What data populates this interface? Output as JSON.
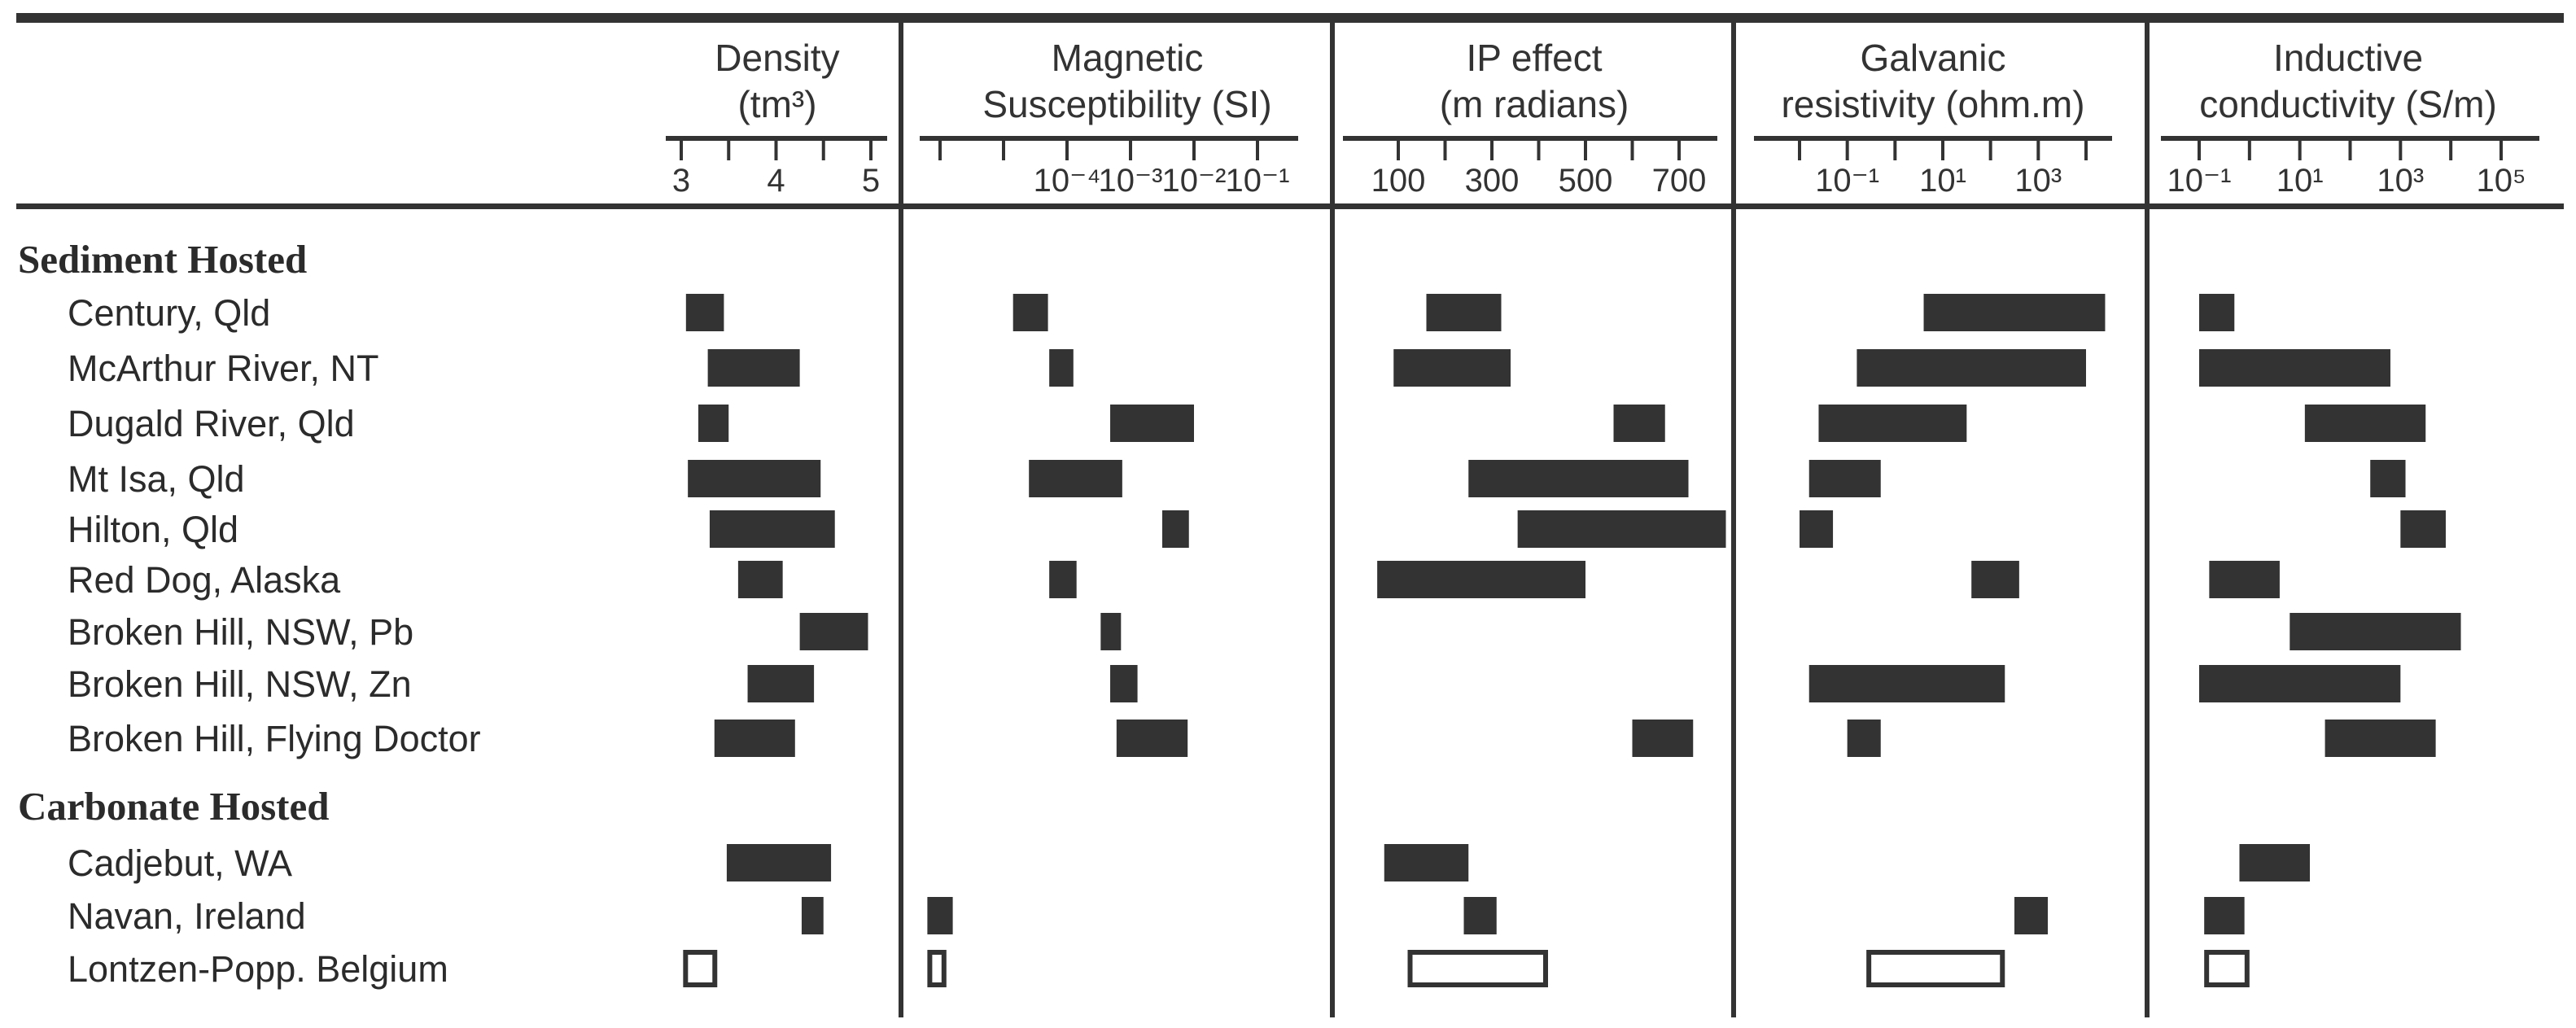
{
  "chart_data": {
    "type": "range-bar",
    "panels": [
      {
        "id": "density",
        "title_lines": [
          "Density",
          "(tm³)"
        ],
        "scale": "linear",
        "ticks": [
          {
            "v": 3,
            "label": "3"
          },
          {
            "v": 3.5,
            "label": ""
          },
          {
            "v": 4,
            "label": "4"
          },
          {
            "v": 4.5,
            "label": ""
          },
          {
            "v": 5,
            "label": "5"
          }
        ]
      },
      {
        "id": "magnetic",
        "title_lines": [
          "Magnetic",
          "Susceptibility (SI)"
        ],
        "scale": "log10",
        "ticks": [
          {
            "e": -6,
            "label": ""
          },
          {
            "e": -5,
            "label": ""
          },
          {
            "e": -4,
            "label": "10⁻⁴"
          },
          {
            "e": -3,
            "label": "10⁻³"
          },
          {
            "e": -2,
            "label": "10⁻²"
          },
          {
            "e": -1,
            "label": "10⁻¹"
          }
        ]
      },
      {
        "id": "ip",
        "title_lines": [
          "IP effect",
          "(m radians)"
        ],
        "scale": "linear",
        "ticks": [
          {
            "v": 100,
            "label": "100"
          },
          {
            "v": 200,
            "label": ""
          },
          {
            "v": 300,
            "label": "300"
          },
          {
            "v": 400,
            "label": ""
          },
          {
            "v": 500,
            "label": "500"
          },
          {
            "v": 600,
            "label": ""
          },
          {
            "v": 700,
            "label": "700"
          }
        ]
      },
      {
        "id": "galvanic",
        "title_lines": [
          "Galvanic",
          "resistivity (ohm.m)"
        ],
        "scale": "log10",
        "ticks": [
          {
            "e": -2,
            "label": ""
          },
          {
            "e": -1,
            "label": "10⁻¹"
          },
          {
            "e": 0,
            "label": ""
          },
          {
            "e": 1,
            "label": "10¹"
          },
          {
            "e": 2,
            "label": ""
          },
          {
            "e": 3,
            "label": "10³"
          },
          {
            "e": 4,
            "label": ""
          }
        ]
      },
      {
        "id": "inductive",
        "title_lines": [
          "Inductive",
          "conductivity (S/m)"
        ],
        "scale": "log10",
        "ticks": [
          {
            "e": -1,
            "label": "10⁻¹"
          },
          {
            "e": 0,
            "label": ""
          },
          {
            "e": 1,
            "label": "10¹"
          },
          {
            "e": 2,
            "label": ""
          },
          {
            "e": 3,
            "label": "10³"
          },
          {
            "e": 4,
            "label": ""
          },
          {
            "e": 5,
            "label": "10⁵"
          }
        ]
      }
    ],
    "groups": [
      {
        "name": "Sediment Hosted",
        "deposits": [
          {
            "name": "Century, Qld",
            "ranges": {
              "density": [
                3.05,
                3.45
              ],
              "magnetic": [
                -4.85,
                -4.3
              ],
              "ip": [
                160,
                320
              ],
              "galvanic": [
                0.6,
                4.4
              ],
              "inductive": [
                -1.0,
                -0.3
              ]
            }
          },
          {
            "name": "McArthur River, NT",
            "ranges": {
              "density": [
                3.28,
                4.25
              ],
              "magnetic": [
                -4.28,
                -3.9
              ],
              "ip": [
                90,
                340
              ],
              "galvanic": [
                -0.8,
                4.0
              ],
              "inductive": [
                -1.0,
                2.8
              ]
            }
          },
          {
            "name": "Dugald River, Qld",
            "ranges": {
              "density": [
                3.18,
                3.5
              ],
              "magnetic": [
                -3.32,
                -2.0
              ],
              "ip": [
                560,
                670
              ],
              "galvanic": [
                -1.6,
                1.5
              ],
              "inductive": [
                1.1,
                3.5
              ]
            }
          },
          {
            "name": "Mt Isa, Qld",
            "ranges": {
              "density": [
                3.07,
                4.47
              ],
              "magnetic": [
                -4.6,
                -3.13
              ],
              "ip": [
                250,
                720
              ],
              "galvanic": [
                -1.8,
                -0.3
              ],
              "inductive": [
                2.4,
                3.1
              ]
            }
          },
          {
            "name": "Hilton, Qld",
            "ranges": {
              "density": [
                3.3,
                4.62
              ],
              "magnetic": [
                -2.5,
                -2.08
              ],
              "ip": [
                355,
                800
              ],
              "galvanic": [
                -2.0,
                -1.3
              ],
              "inductive": [
                3.0,
                3.9
              ]
            }
          },
          {
            "name": "Red Dog, Alaska",
            "ranges": {
              "density": [
                3.6,
                4.07
              ],
              "magnetic": [
                -4.28,
                -3.85
              ],
              "ip": [
                55,
                500
              ],
              "galvanic": [
                1.6,
                2.6
              ],
              "inductive": [
                -0.8,
                0.6
              ]
            }
          },
          {
            "name": "Broken Hill, NSW, Pb",
            "ranges": {
              "density": [
                4.25,
                4.97
              ],
              "magnetic": [
                -3.47,
                -3.15
              ],
              "ip": null,
              "galvanic": null,
              "inductive": [
                0.8,
                4.2
              ]
            }
          },
          {
            "name": "Broken Hill, NSW, Zn",
            "ranges": {
              "density": [
                3.7,
                4.4
              ],
              "magnetic": [
                -3.32,
                -2.89
              ],
              "ip": null,
              "galvanic": [
                -1.8,
                2.3
              ],
              "inductive": [
                -1.0,
                3.0
              ]
            }
          },
          {
            "name": "Broken Hill, Flying Doctor",
            "ranges": {
              "density": [
                3.35,
                4.2
              ],
              "magnetic": [
                -3.22,
                -2.1
              ],
              "ip": [
                600,
                730
              ],
              "galvanic": [
                -1.0,
                -0.3
              ],
              "inductive": [
                1.5,
                3.7
              ]
            }
          }
        ]
      },
      {
        "name": "Carbonate Hosted",
        "deposits": [
          {
            "name": "Cadjebut, WA",
            "ranges": {
              "density": [
                3.48,
                4.58
              ],
              "magnetic": null,
              "ip": [
                70,
                250
              ],
              "galvanic": null,
              "inductive": [
                -0.2,
                1.2
              ]
            }
          },
          {
            "name": "Navan, Ireland",
            "ranges": {
              "density": [
                4.27,
                4.5
              ],
              "magnetic": [
                -6.2,
                -5.8
              ],
              "ip": [
                240,
                310
              ],
              "galvanic": [
                2.5,
                3.2
              ],
              "inductive": [
                -0.9,
                -0.1
              ]
            },
            "outline": false
          },
          {
            "name": "Lontzen-Popp. Belgium",
            "ranges": {
              "density": [
                3.02,
                3.38
              ],
              "magnetic": [
                -6.2,
                -5.9
              ],
              "ip": [
                120,
                420
              ],
              "galvanic": [
                -0.6,
                2.3
              ],
              "inductive": [
                -0.9,
                0.0
              ]
            },
            "outline": true
          }
        ]
      }
    ],
    "bar_color": "#333333"
  }
}
